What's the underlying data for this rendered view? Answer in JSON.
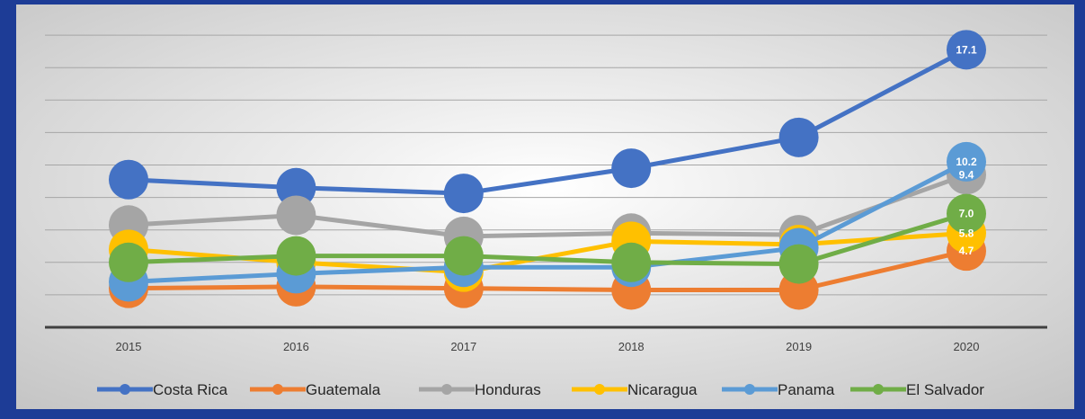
{
  "chart_data": {
    "type": "line",
    "categories": [
      "2015",
      "2016",
      "2017",
      "2018",
      "2019",
      "2020"
    ],
    "series": [
      {
        "name": "Costa Rica",
        "color": "#4472c4",
        "values": [
          9.1,
          8.6,
          8.25,
          9.8,
          11.7,
          17.1
        ],
        "value_labels": [
          null,
          null,
          null,
          null,
          null,
          "17.1"
        ]
      },
      {
        "name": "Guatemala",
        "color": "#ed7d31",
        "values": [
          2.4,
          2.5,
          2.4,
          2.3,
          2.3,
          4.7
        ],
        "value_labels": [
          null,
          null,
          null,
          null,
          null,
          "4.7"
        ]
      },
      {
        "name": "Honduras",
        "color": "#a5a5a5",
        "values": [
          6.3,
          6.9,
          5.6,
          5.8,
          5.7,
          9.4
        ],
        "value_labels": [
          null,
          null,
          null,
          null,
          null,
          "9.4"
        ]
      },
      {
        "name": "Nicaragua",
        "color": "#ffc000",
        "values": [
          4.8,
          4.0,
          3.4,
          5.3,
          5.1,
          5.8
        ],
        "value_labels": [
          null,
          null,
          null,
          null,
          null,
          "5.8"
        ]
      },
      {
        "name": "Panama",
        "color": "#5b9bd5",
        "values": [
          2.8,
          3.3,
          3.7,
          3.7,
          4.9,
          10.2
        ],
        "value_labels": [
          null,
          null,
          null,
          null,
          null,
          "10.2"
        ]
      },
      {
        "name": "El Salvador",
        "color": "#70ad47",
        "values": [
          4.0,
          4.4,
          4.4,
          4.0,
          3.9,
          7.0
        ],
        "value_labels": [
          null,
          null,
          null,
          null,
          null,
          "7.0"
        ]
      }
    ],
    "ylim": [
      0,
      20
    ],
    "yticks": [
      0,
      2,
      4,
      6,
      8,
      10,
      12,
      14,
      16,
      18
    ],
    "grid": true,
    "legend": "bottom"
  }
}
